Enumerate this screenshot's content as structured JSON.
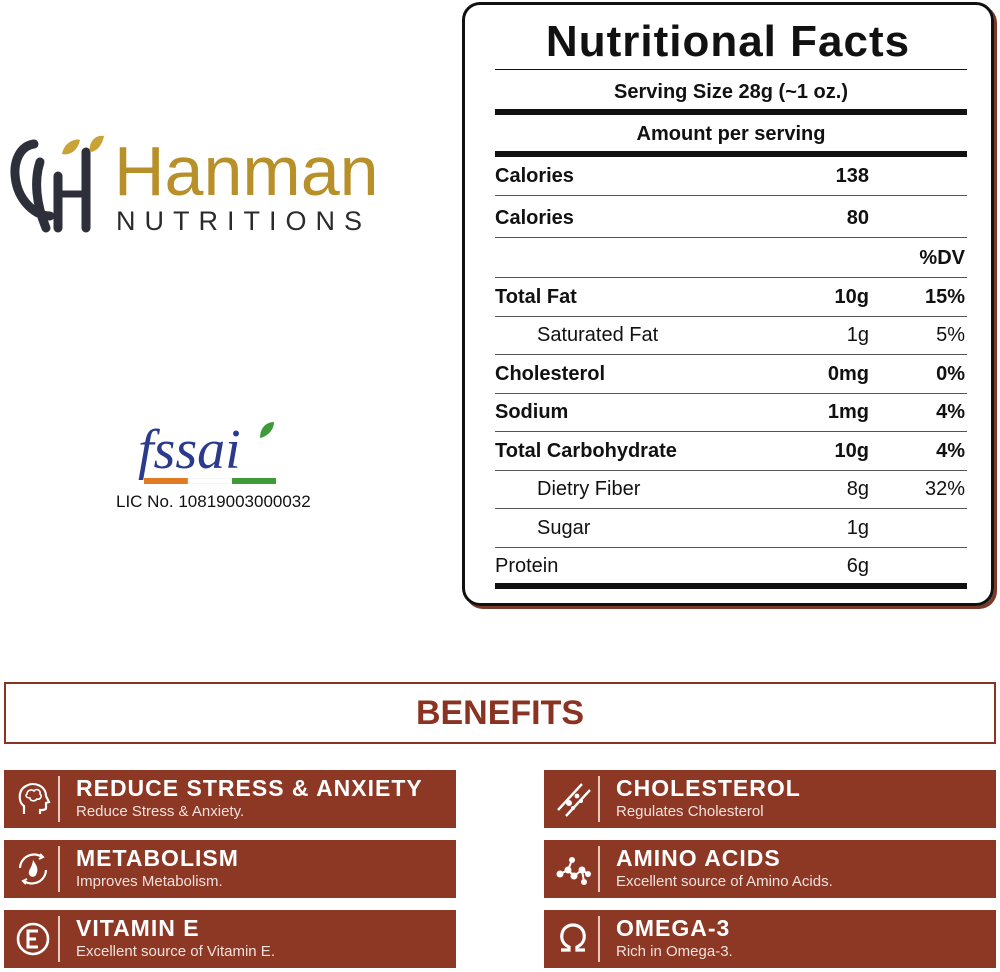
{
  "brand": {
    "name": "Hanman",
    "sub": "NUTRITIONS"
  },
  "fssai": {
    "logo_text": "fssai",
    "license": "LIC No. 10819003000032"
  },
  "nutrition": {
    "title": "Nutritional Facts",
    "serving_size": "Serving Size 28g (~1 oz.)",
    "amount_header": "Amount per serving",
    "dv_header": "%DV",
    "rows": [
      {
        "label": "Calories",
        "amount": "138",
        "dv": ""
      },
      {
        "label": "Calories",
        "amount": "80",
        "dv": ""
      },
      {
        "label": "",
        "amount": "",
        "dv": "%DV"
      },
      {
        "label": "Total Fat",
        "amount": "10g",
        "dv": "15%"
      },
      {
        "label": "Saturated Fat",
        "amount": "1g",
        "dv": "5%"
      },
      {
        "label": "Cholesterol",
        "amount": "0mg",
        "dv": "0%"
      },
      {
        "label": "Sodium",
        "amount": "1mg",
        "dv": "4%"
      },
      {
        "label": "Total Carbohydrate",
        "amount": "10g",
        "dv": "4%"
      },
      {
        "label": "Dietry Fiber",
        "amount": "8g",
        "dv": "32%"
      },
      {
        "label": "Sugar",
        "amount": "1g",
        "dv": ""
      },
      {
        "label": "Protein",
        "amount": "6g",
        "dv": ""
      }
    ]
  },
  "benefits": {
    "heading": "BENEFITS",
    "items": [
      {
        "title": "REDUCE STRESS & ANXIETY",
        "desc": "Reduce Stress & Anxiety.",
        "icon": "brain-head-icon"
      },
      {
        "title": "CHOLESTEROL",
        "desc": "Regulates Cholesterol",
        "icon": "artery-icon"
      },
      {
        "title": "METABOLISM",
        "desc": "Improves Metabolism.",
        "icon": "metabolism-flame-icon"
      },
      {
        "title": "AMINO ACIDS",
        "desc": "Excellent source of Amino Acids.",
        "icon": "molecule-icon"
      },
      {
        "title": "VITAMIN E",
        "desc": "Excellent source of Vitamin E.",
        "icon": "vitamin-e-icon"
      },
      {
        "title": "OMEGA-3",
        "desc": "Rich in Omega-3.",
        "icon": "omega-icon"
      }
    ]
  },
  "colors": {
    "brand_gold": "#b8902a",
    "benefit_brown": "#8d3725",
    "fssai_blue": "#2a3a8c",
    "fssai_orange": "#e07b22"
  }
}
